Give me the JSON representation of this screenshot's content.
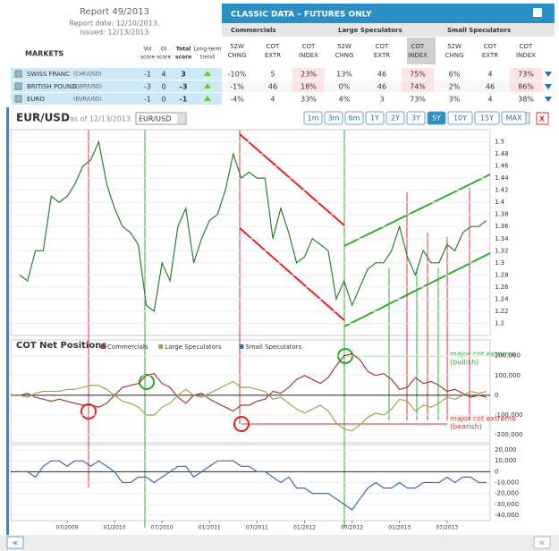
{
  "header": {
    "report": "Report 49/2013",
    "report_date": "Report date: 12/10/2013,",
    "issued": "issued: 12/13/2013"
  },
  "table": {
    "title": "CLASSIC DATA – FUTURES ONLY",
    "markets_label": "MARKETS",
    "score_headers": [
      [
        "Vol",
        "score"
      ],
      [
        "OI",
        "score"
      ],
      [
        "Total",
        "score"
      ],
      [
        "Long-term",
        "trend"
      ]
    ],
    "groups": [
      "Commercials",
      "Large Speculators",
      "Small Speculators"
    ],
    "sub_headers": [
      [
        "52W",
        "CHNG"
      ],
      [
        "COT",
        "EXTR"
      ],
      [
        "COT",
        "INDEX"
      ]
    ],
    "rows": [
      {
        "market": "SWISS FRANC",
        "pair": "(CHF/USD)",
        "cells": [
          "-1",
          "4",
          "3",
          "-10%",
          "5",
          "23%",
          "13%",
          "46",
          "75%",
          "6%",
          "4",
          "73%"
        ]
      },
      {
        "market": "BRITISH POUND",
        "pair": "(GBP/USD)",
        "cells": [
          "-3",
          "0",
          "-3",
          "-1%",
          "46",
          "18%",
          "0%",
          "46",
          "74%",
          "2%",
          "46",
          "86%"
        ]
      },
      {
        "market": "EURO",
        "pair": "(EUR/USD)",
        "cells": [
          "-1",
          "0",
          "-1",
          "-4%",
          "4",
          "33%",
          "4%",
          "3",
          "73%",
          "3%",
          "4",
          "38%"
        ]
      }
    ]
  },
  "toolbar": {
    "symbol": "EUR/USD",
    "as_of": "as of 12/13/2013",
    "select": "EUR/USD",
    "ranges": [
      "1m",
      "3m",
      "6m",
      "1Y",
      "2Y",
      "3Y",
      "5Y",
      "10Y",
      "15Y",
      "MAX"
    ],
    "close": "X"
  },
  "nav": {
    "prev": "«",
    "next": "«"
  },
  "chart_data": [
    {
      "type": "line",
      "color": "#2e7d32",
      "x": [
        "01/2009",
        "02/2009",
        "03/2009",
        "04/2009",
        "05/2009",
        "06/2009",
        "07/2009",
        "08/2009",
        "09/2009",
        "10/2009",
        "11/2009",
        "12/2009",
        "01/2010",
        "02/2010",
        "03/2010",
        "04/2010",
        "05/2010",
        "06/2010",
        "07/2010",
        "08/2010",
        "09/2010",
        "10/2010",
        "11/2010",
        "12/2010",
        "01/2011",
        "02/2011",
        "03/2011",
        "04/2011",
        "05/2011",
        "06/2011",
        "07/2011",
        "08/2011",
        "09/2011",
        "10/2011",
        "11/2011",
        "12/2011",
        "01/2012",
        "02/2012",
        "03/2012",
        "04/2012",
        "05/2012",
        "06/2012",
        "07/2012",
        "08/2012",
        "09/2012",
        "10/2012",
        "11/2012",
        "12/2012",
        "01/2013",
        "02/2013",
        "03/2013",
        "04/2013",
        "05/2013",
        "06/2013",
        "07/2013",
        "08/2013",
        "09/2013",
        "10/2013",
        "11/2013",
        "12/2013"
      ],
      "values": [
        1.28,
        1.27,
        1.32,
        1.32,
        1.41,
        1.4,
        1.41,
        1.43,
        1.46,
        1.47,
        1.5,
        1.43,
        1.39,
        1.36,
        1.35,
        1.33,
        1.23,
        1.22,
        1.3,
        1.27,
        1.36,
        1.39,
        1.3,
        1.34,
        1.37,
        1.38,
        1.42,
        1.48,
        1.44,
        1.45,
        1.44,
        1.44,
        1.34,
        1.39,
        1.35,
        1.3,
        1.31,
        1.34,
        1.33,
        1.32,
        1.24,
        1.27,
        1.23,
        1.26,
        1.29,
        1.3,
        1.3,
        1.32,
        1.36,
        1.31,
        1.28,
        1.32,
        1.3,
        1.3,
        1.33,
        1.32,
        1.35,
        1.36,
        1.36,
        1.37
      ],
      "ylim": [
        1.18,
        1.52
      ],
      "yticks": [
        1.2,
        1.22,
        1.24,
        1.26,
        1.28,
        1.3,
        1.32,
        1.34,
        1.36,
        1.38,
        1.4,
        1.42,
        1.44,
        1.46,
        1.48,
        1.5
      ]
    },
    {
      "type": "line",
      "title": "COT Net Positions",
      "series": [
        {
          "name": "Commercials",
          "color": "#a33a3a",
          "values": [
            0,
            10000,
            -10000,
            -20000,
            -30000,
            -20000,
            -30000,
            -40000,
            -50000,
            -50000,
            -60000,
            -40000,
            0,
            40000,
            50000,
            60000,
            100000,
            110000,
            60000,
            40000,
            -10000,
            -40000,
            0,
            10000,
            -20000,
            -40000,
            -60000,
            -80000,
            -50000,
            -50000,
            -30000,
            -20000,
            20000,
            10000,
            40000,
            80000,
            100000,
            80000,
            60000,
            90000,
            150000,
            200000,
            210000,
            180000,
            120000,
            100000,
            110000,
            80000,
            30000,
            40000,
            90000,
            60000,
            70000,
            50000,
            20000,
            30000,
            10000,
            -10000,
            0,
            -10000
          ]
        },
        {
          "name": "Large Speculators",
          "color": "#9aa84a",
          "values": [
            0,
            -10000,
            10000,
            20000,
            20000,
            20000,
            30000,
            30000,
            40000,
            50000,
            50000,
            30000,
            0,
            -30000,
            -40000,
            -60000,
            -100000,
            -100000,
            -60000,
            -40000,
            0,
            30000,
            0,
            -10000,
            10000,
            30000,
            50000,
            70000,
            40000,
            40000,
            30000,
            20000,
            -20000,
            -10000,
            -40000,
            -70000,
            -90000,
            -70000,
            -50000,
            -80000,
            -140000,
            -170000,
            -180000,
            -150000,
            -110000,
            -90000,
            -100000,
            -70000,
            -20000,
            -30000,
            -80000,
            -50000,
            -60000,
            -40000,
            -10000,
            -20000,
            0,
            20000,
            10000,
            20000
          ]
        }
      ],
      "legend_extra": {
        "name": "Small Speculators",
        "color": "#3b6bb5"
      },
      "annotations": [
        "major cot extreme",
        "(bullish)",
        "major cot extreme",
        "(bearish)"
      ],
      "ylim": [
        -240000,
        280000
      ],
      "yticks": [
        {
          "value": 200000,
          "label": "200,000"
        },
        {
          "value": 100000,
          "label": "100,000"
        },
        0,
        {
          "value": -100000,
          "label": "-100,000"
        },
        {
          "value": -200000,
          "label": "-200,000"
        }
      ]
    },
    {
      "type": "line",
      "color": "#3b6bb5",
      "values": [
        0,
        0,
        -5000,
        5000,
        10000,
        10000,
        5000,
        10000,
        10000,
        5000,
        10000,
        5000,
        0,
        -10000,
        -10000,
        -5000,
        -5000,
        -10000,
        -5000,
        0,
        5000,
        5000,
        -5000,
        0,
        5000,
        10000,
        10000,
        10000,
        5000,
        5000,
        0,
        0,
        -5000,
        -10000,
        -5000,
        -15000,
        -15000,
        -20000,
        -20000,
        -20000,
        -25000,
        -30000,
        -35000,
        -25000,
        -15000,
        -10000,
        -15000,
        -15000,
        -10000,
        -15000,
        -15000,
        -10000,
        -10000,
        -10000,
        -5000,
        -10000,
        -5000,
        -5000,
        -10000,
        -10000
      ],
      "ylim": [
        -45000,
        25000
      ],
      "yticks": [
        {
          "value": 20000,
          "label": "20,000"
        },
        {
          "value": 10000,
          "label": "10,000"
        },
        0,
        {
          "value": -10000,
          "label": "-10,000"
        },
        {
          "value": -20000,
          "label": "-20,000"
        },
        {
          "value": -30000,
          "label": "-30,000"
        },
        {
          "value": -40000,
          "label": "-40,000"
        }
      ],
      "xticks": [
        "07/2009",
        "01/2010",
        "07/2010",
        "01/2011",
        "07/2011",
        "01/2012",
        "07/2012",
        "01/2013",
        "07/2013"
      ]
    }
  ]
}
